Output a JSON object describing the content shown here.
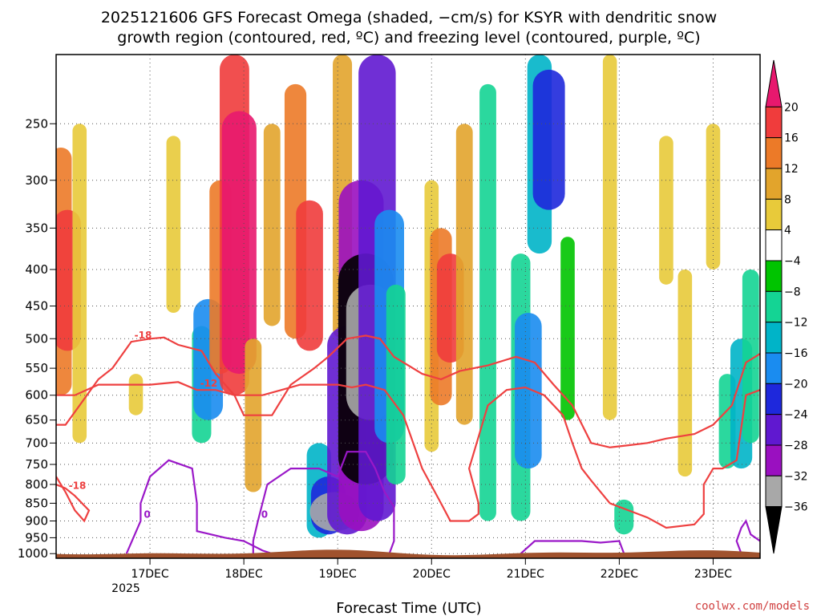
{
  "chart_data": {
    "type": "heatmap",
    "title_line1": "2025121606 GFS Forecast Omega (shaded, −cm/s) for KSYR with dendritic snow",
    "title_line2": "growth region (contoured, red, ºC) and freezing level (contoured, purple, ºC)",
    "xlabel": "Forecast Time (UTC)",
    "ylabel": "",
    "x_ticks": [
      "17DEC",
      "18DEC",
      "19DEC",
      "20DEC",
      "21DEC",
      "22DEC",
      "23DEC"
    ],
    "x_year_label": "2025",
    "x_range_days": [
      0.0,
      7.5
    ],
    "y_ticks": [
      250,
      300,
      350,
      400,
      450,
      500,
      550,
      600,
      650,
      700,
      750,
      800,
      850,
      900,
      950,
      1000
    ],
    "y_range_hpa": [
      1015,
      200
    ],
    "colorbar": {
      "labels": [
        "20",
        "16",
        "12",
        "8",
        "4",
        "−4",
        "−8",
        "−12",
        "−16",
        "−20",
        "−24",
        "−28",
        "−32",
        "−36"
      ],
      "colors": [
        "#e8186e",
        "#f03c3c",
        "#ec7a28",
        "#e2a42c",
        "#e8ca3a",
        "#ffffff",
        "#00c400",
        "#14d494",
        "#00b4c8",
        "#1a8cf0",
        "#1e28dc",
        "#6018d0",
        "#9a10c0",
        "#a8a8a8",
        "#000000"
      ]
    },
    "omega_cells": [
      {
        "day": 0.05,
        "p_top": 270,
        "p_bot": 600,
        "value": 12
      },
      {
        "day": 0.12,
        "p_top": 330,
        "p_bot": 520,
        "value": 16
      },
      {
        "day": 0.25,
        "p_top": 250,
        "p_bot": 700,
        "value": 6
      },
      {
        "day": 0.85,
        "p_top": 560,
        "p_bot": 640,
        "value": 6
      },
      {
        "day": 1.25,
        "p_top": 260,
        "p_bot": 460,
        "value": 6
      },
      {
        "day": 1.55,
        "p_top": 480,
        "p_bot": 700,
        "value": -10
      },
      {
        "day": 1.62,
        "p_top": 440,
        "p_bot": 650,
        "value": -18
      },
      {
        "day": 1.75,
        "p_top": 300,
        "p_bot": 560,
        "value": 12
      },
      {
        "day": 1.9,
        "p_top": 200,
        "p_bot": 600,
        "value": 18
      },
      {
        "day": 1.95,
        "p_top": 240,
        "p_bot": 560,
        "value": 22
      },
      {
        "day": 2.1,
        "p_top": 500,
        "p_bot": 820,
        "value": 8
      },
      {
        "day": 2.3,
        "p_top": 250,
        "p_bot": 480,
        "value": 8
      },
      {
        "day": 2.55,
        "p_top": 220,
        "p_bot": 500,
        "value": 12
      },
      {
        "day": 2.7,
        "p_top": 320,
        "p_bot": 520,
        "value": 16
      },
      {
        "day": 2.8,
        "p_top": 700,
        "p_bot": 950,
        "value": -14
      },
      {
        "day": 2.9,
        "p_top": 780,
        "p_bot": 940,
        "value": -22
      },
      {
        "day": 2.97,
        "p_top": 820,
        "p_bot": 930,
        "value": -34
      },
      {
        "day": 3.05,
        "p_top": 200,
        "p_bot": 500,
        "value": 10
      },
      {
        "day": 3.1,
        "p_top": 480,
        "p_bot": 940,
        "value": -26
      },
      {
        "day": 3.25,
        "p_top": 300,
        "p_bot": 930,
        "value": -30
      },
      {
        "day": 3.3,
        "p_top": 380,
        "p_bot": 800,
        "value": -38
      },
      {
        "day": 3.35,
        "p_top": 420,
        "p_bot": 650,
        "value": -33
      },
      {
        "day": 3.42,
        "p_top": 200,
        "p_bot": 900,
        "value": -24
      },
      {
        "day": 3.55,
        "p_top": 330,
        "p_bot": 700,
        "value": -18
      },
      {
        "day": 3.62,
        "p_top": 420,
        "p_bot": 800,
        "value": -10
      },
      {
        "day": 4.0,
        "p_top": 300,
        "p_bot": 720,
        "value": 6
      },
      {
        "day": 4.1,
        "p_top": 350,
        "p_bot": 620,
        "value": 12
      },
      {
        "day": 4.2,
        "p_top": 380,
        "p_bot": 540,
        "value": 16
      },
      {
        "day": 4.35,
        "p_top": 250,
        "p_bot": 660,
        "value": 8
      },
      {
        "day": 4.6,
        "p_top": 220,
        "p_bot": 900,
        "value": -8
      },
      {
        "day": 4.95,
        "p_top": 380,
        "p_bot": 900,
        "value": -10
      },
      {
        "day": 5.03,
        "p_top": 460,
        "p_bot": 760,
        "value": -16
      },
      {
        "day": 5.15,
        "p_top": 200,
        "p_bot": 380,
        "value": -14
      },
      {
        "day": 5.25,
        "p_top": 210,
        "p_bot": 330,
        "value": -20
      },
      {
        "day": 5.45,
        "p_top": 360,
        "p_bot": 650,
        "value": -6
      },
      {
        "day": 5.9,
        "p_top": 200,
        "p_bot": 650,
        "value": 6
      },
      {
        "day": 6.05,
        "p_top": 840,
        "p_bot": 940,
        "value": -10
      },
      {
        "day": 6.5,
        "p_top": 260,
        "p_bot": 420,
        "value": 6
      },
      {
        "day": 6.7,
        "p_top": 400,
        "p_bot": 780,
        "value": 6
      },
      {
        "day": 7.0,
        "p_top": 250,
        "p_bot": 400,
        "value": 6
      },
      {
        "day": 7.15,
        "p_top": 560,
        "p_bot": 760,
        "value": -8
      },
      {
        "day": 7.3,
        "p_top": 500,
        "p_bot": 760,
        "value": -12
      },
      {
        "day": 7.4,
        "p_top": 400,
        "p_bot": 700,
        "value": -8
      }
    ],
    "dgz_contours": [
      {
        "label": "-18",
        "points": [
          [
            0.0,
            660
          ],
          [
            0.1,
            660
          ],
          [
            0.25,
            620
          ],
          [
            0.45,
            570
          ],
          [
            0.6,
            550
          ],
          [
            0.8,
            505
          ],
          [
            1.0,
            500
          ],
          [
            1.15,
            498
          ],
          [
            1.3,
            510
          ],
          [
            1.55,
            520
          ],
          [
            1.7,
            560
          ],
          [
            1.9,
            600
          ],
          [
            2.0,
            640
          ],
          [
            2.3,
            640
          ],
          [
            2.5,
            580
          ],
          [
            2.75,
            550
          ],
          [
            2.9,
            530
          ],
          [
            3.1,
            500
          ],
          [
            3.3,
            495
          ],
          [
            3.45,
            500
          ],
          [
            3.6,
            530
          ],
          [
            3.9,
            560
          ],
          [
            4.1,
            570
          ],
          [
            4.3,
            555
          ],
          [
            4.6,
            545
          ],
          [
            4.9,
            530
          ],
          [
            5.1,
            540
          ],
          [
            5.3,
            580
          ],
          [
            5.5,
            620
          ],
          [
            5.7,
            700
          ],
          [
            5.9,
            710
          ],
          [
            6.1,
            705
          ],
          [
            6.3,
            700
          ],
          [
            6.5,
            690
          ],
          [
            6.8,
            680
          ],
          [
            7.0,
            660
          ],
          [
            7.2,
            620
          ],
          [
            7.35,
            540
          ],
          [
            7.5,
            525
          ]
        ]
      },
      {
        "label": "-12",
        "points": [
          [
            0.0,
            600
          ],
          [
            0.2,
            600
          ],
          [
            0.45,
            580
          ],
          [
            0.7,
            580
          ],
          [
            1.0,
            580
          ],
          [
            1.3,
            575
          ],
          [
            1.5,
            590
          ],
          [
            1.7,
            590
          ],
          [
            1.9,
            600
          ],
          [
            2.2,
            600
          ],
          [
            2.4,
            590
          ],
          [
            2.6,
            580
          ],
          [
            2.8,
            580
          ],
          [
            3.0,
            580
          ],
          [
            3.15,
            585
          ],
          [
            3.3,
            580
          ],
          [
            3.5,
            590
          ],
          [
            3.7,
            640
          ],
          [
            3.9,
            760
          ],
          [
            4.1,
            850
          ],
          [
            4.2,
            900
          ],
          [
            4.4,
            900
          ],
          [
            4.5,
            880
          ],
          [
            4.5,
            850
          ],
          [
            4.4,
            760
          ],
          [
            4.6,
            620
          ],
          [
            4.8,
            590
          ],
          [
            5.0,
            585
          ],
          [
            5.2,
            600
          ],
          [
            5.4,
            640
          ],
          [
            5.5,
            700
          ],
          [
            5.6,
            760
          ],
          [
            5.7,
            790
          ],
          [
            5.9,
            850
          ],
          [
            6.1,
            870
          ],
          [
            6.3,
            890
          ],
          [
            6.5,
            920
          ],
          [
            6.8,
            910
          ],
          [
            6.9,
            880
          ],
          [
            6.9,
            800
          ],
          [
            7.0,
            760
          ],
          [
            7.1,
            760
          ],
          [
            7.25,
            740
          ],
          [
            7.35,
            600
          ],
          [
            7.5,
            590
          ]
        ]
      },
      {
        "label": "-18",
        "points": [
          [
            0.0,
            780
          ],
          [
            0.1,
            820
          ],
          [
            0.2,
            870
          ],
          [
            0.3,
            900
          ],
          [
            0.35,
            870
          ],
          [
            0.2,
            830
          ],
          [
            0.1,
            810
          ],
          [
            0.0,
            800
          ]
        ]
      }
    ],
    "freezing_contours": [
      {
        "label": "0",
        "points": [
          [
            0.75,
            1000
          ],
          [
            0.9,
            900
          ],
          [
            0.9,
            850
          ],
          [
            1.0,
            780
          ],
          [
            1.2,
            740
          ],
          [
            1.45,
            760
          ],
          [
            1.5,
            850
          ],
          [
            1.5,
            930
          ],
          [
            1.8,
            950
          ],
          [
            2.0,
            960
          ],
          [
            2.2,
            990
          ],
          [
            2.3,
            1000
          ]
        ]
      },
      {
        "label": "0",
        "points": [
          [
            2.1,
            1000
          ],
          [
            2.1,
            960
          ],
          [
            2.15,
            900
          ],
          [
            2.25,
            800
          ],
          [
            2.5,
            760
          ],
          [
            2.8,
            760
          ],
          [
            3.0,
            780
          ],
          [
            3.1,
            720
          ],
          [
            3.3,
            720
          ],
          [
            3.4,
            760
          ],
          [
            3.5,
            820
          ],
          [
            3.6,
            860
          ],
          [
            3.6,
            960
          ],
          [
            3.55,
            1000
          ]
        ]
      },
      {
        "label": "",
        "points": [
          [
            4.95,
            1000
          ],
          [
            5.1,
            960
          ],
          [
            5.3,
            960
          ],
          [
            5.6,
            960
          ],
          [
            5.8,
            965
          ],
          [
            6.0,
            960
          ],
          [
            6.05,
            1000
          ]
        ]
      },
      {
        "label": "",
        "points": [
          [
            7.3,
            1000
          ],
          [
            7.25,
            960
          ],
          [
            7.3,
            920
          ],
          [
            7.35,
            900
          ],
          [
            7.4,
            940
          ],
          [
            7.5,
            960
          ]
        ]
      }
    ],
    "credit": "coolwx.com/models"
  }
}
